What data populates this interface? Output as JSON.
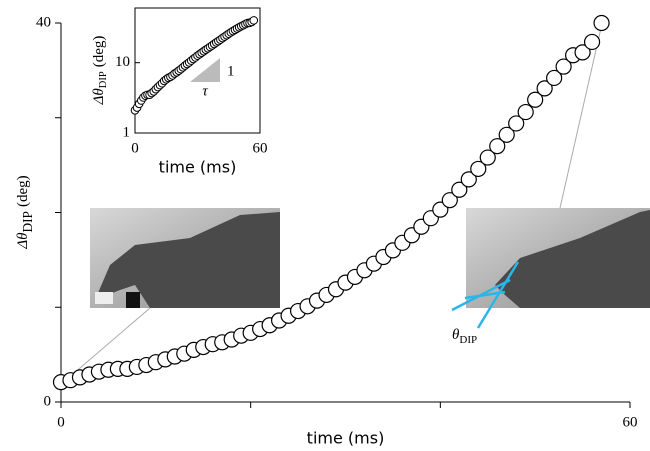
{
  "chart_data": {
    "type": "scatter",
    "x": [
      0,
      1,
      2,
      3,
      4,
      5,
      6,
      7,
      8,
      9,
      10,
      11,
      12,
      13,
      14,
      15,
      16,
      17,
      18,
      19,
      20,
      21,
      22,
      23,
      24,
      25,
      26,
      27,
      28,
      29,
      30,
      31,
      32,
      33,
      34,
      35,
      36,
      37,
      38,
      39,
      40,
      41,
      42,
      43,
      44,
      45,
      46,
      47,
      48,
      49,
      50,
      51,
      52,
      53,
      54,
      55,
      56,
      57
    ],
    "y": [
      2.1,
      2.3,
      2.6,
      2.9,
      3.2,
      3.4,
      3.5,
      3.5,
      3.7,
      3.9,
      4.2,
      4.5,
      4.8,
      5.1,
      5.5,
      5.8,
      6.1,
      6.3,
      6.6,
      7.0,
      7.3,
      7.7,
      8.1,
      8.6,
      9.1,
      9.6,
      10.1,
      10.7,
      11.3,
      11.9,
      12.6,
      13.2,
      13.9,
      14.6,
      15.3,
      16.0,
      16.8,
      17.6,
      18.5,
      19.4,
      20.3,
      21.3,
      22.4,
      23.5,
      24.6,
      25.8,
      27.0,
      28.2,
      29.4,
      30.6,
      31.9,
      33.1,
      34.2,
      35.4,
      36.6,
      36.9,
      38.0,
      40.0
    ],
    "xlim": [
      0,
      60
    ],
    "ylim": [
      0,
      40
    ],
    "xticks": [
      0,
      60
    ],
    "yticks": [
      0,
      40
    ],
    "xminorticks": [
      20,
      40
    ],
    "yminorticks": [
      10,
      20,
      30
    ],
    "xlabel": "time (ms)",
    "ylabel": {
      "symbol": "Δθ",
      "subscript": "DIP",
      "unit": "(deg)"
    },
    "marker": {
      "fill": "#ffffff",
      "edge": "#000000"
    },
    "inset": {
      "yscale": "log",
      "xlim": [
        0,
        60
      ],
      "ylim": [
        1,
        60
      ],
      "xticks": [
        0,
        60
      ],
      "yticks": [
        1,
        10
      ],
      "xlabel": "time (ms)",
      "ylabel": {
        "symbol": "Δθ",
        "subscript": "DIP",
        "unit": "(deg)"
      },
      "slope_labels": [
        "1",
        "τ"
      ]
    },
    "annotation": {
      "symbol": "θ",
      "subscript": "DIP"
    }
  }
}
